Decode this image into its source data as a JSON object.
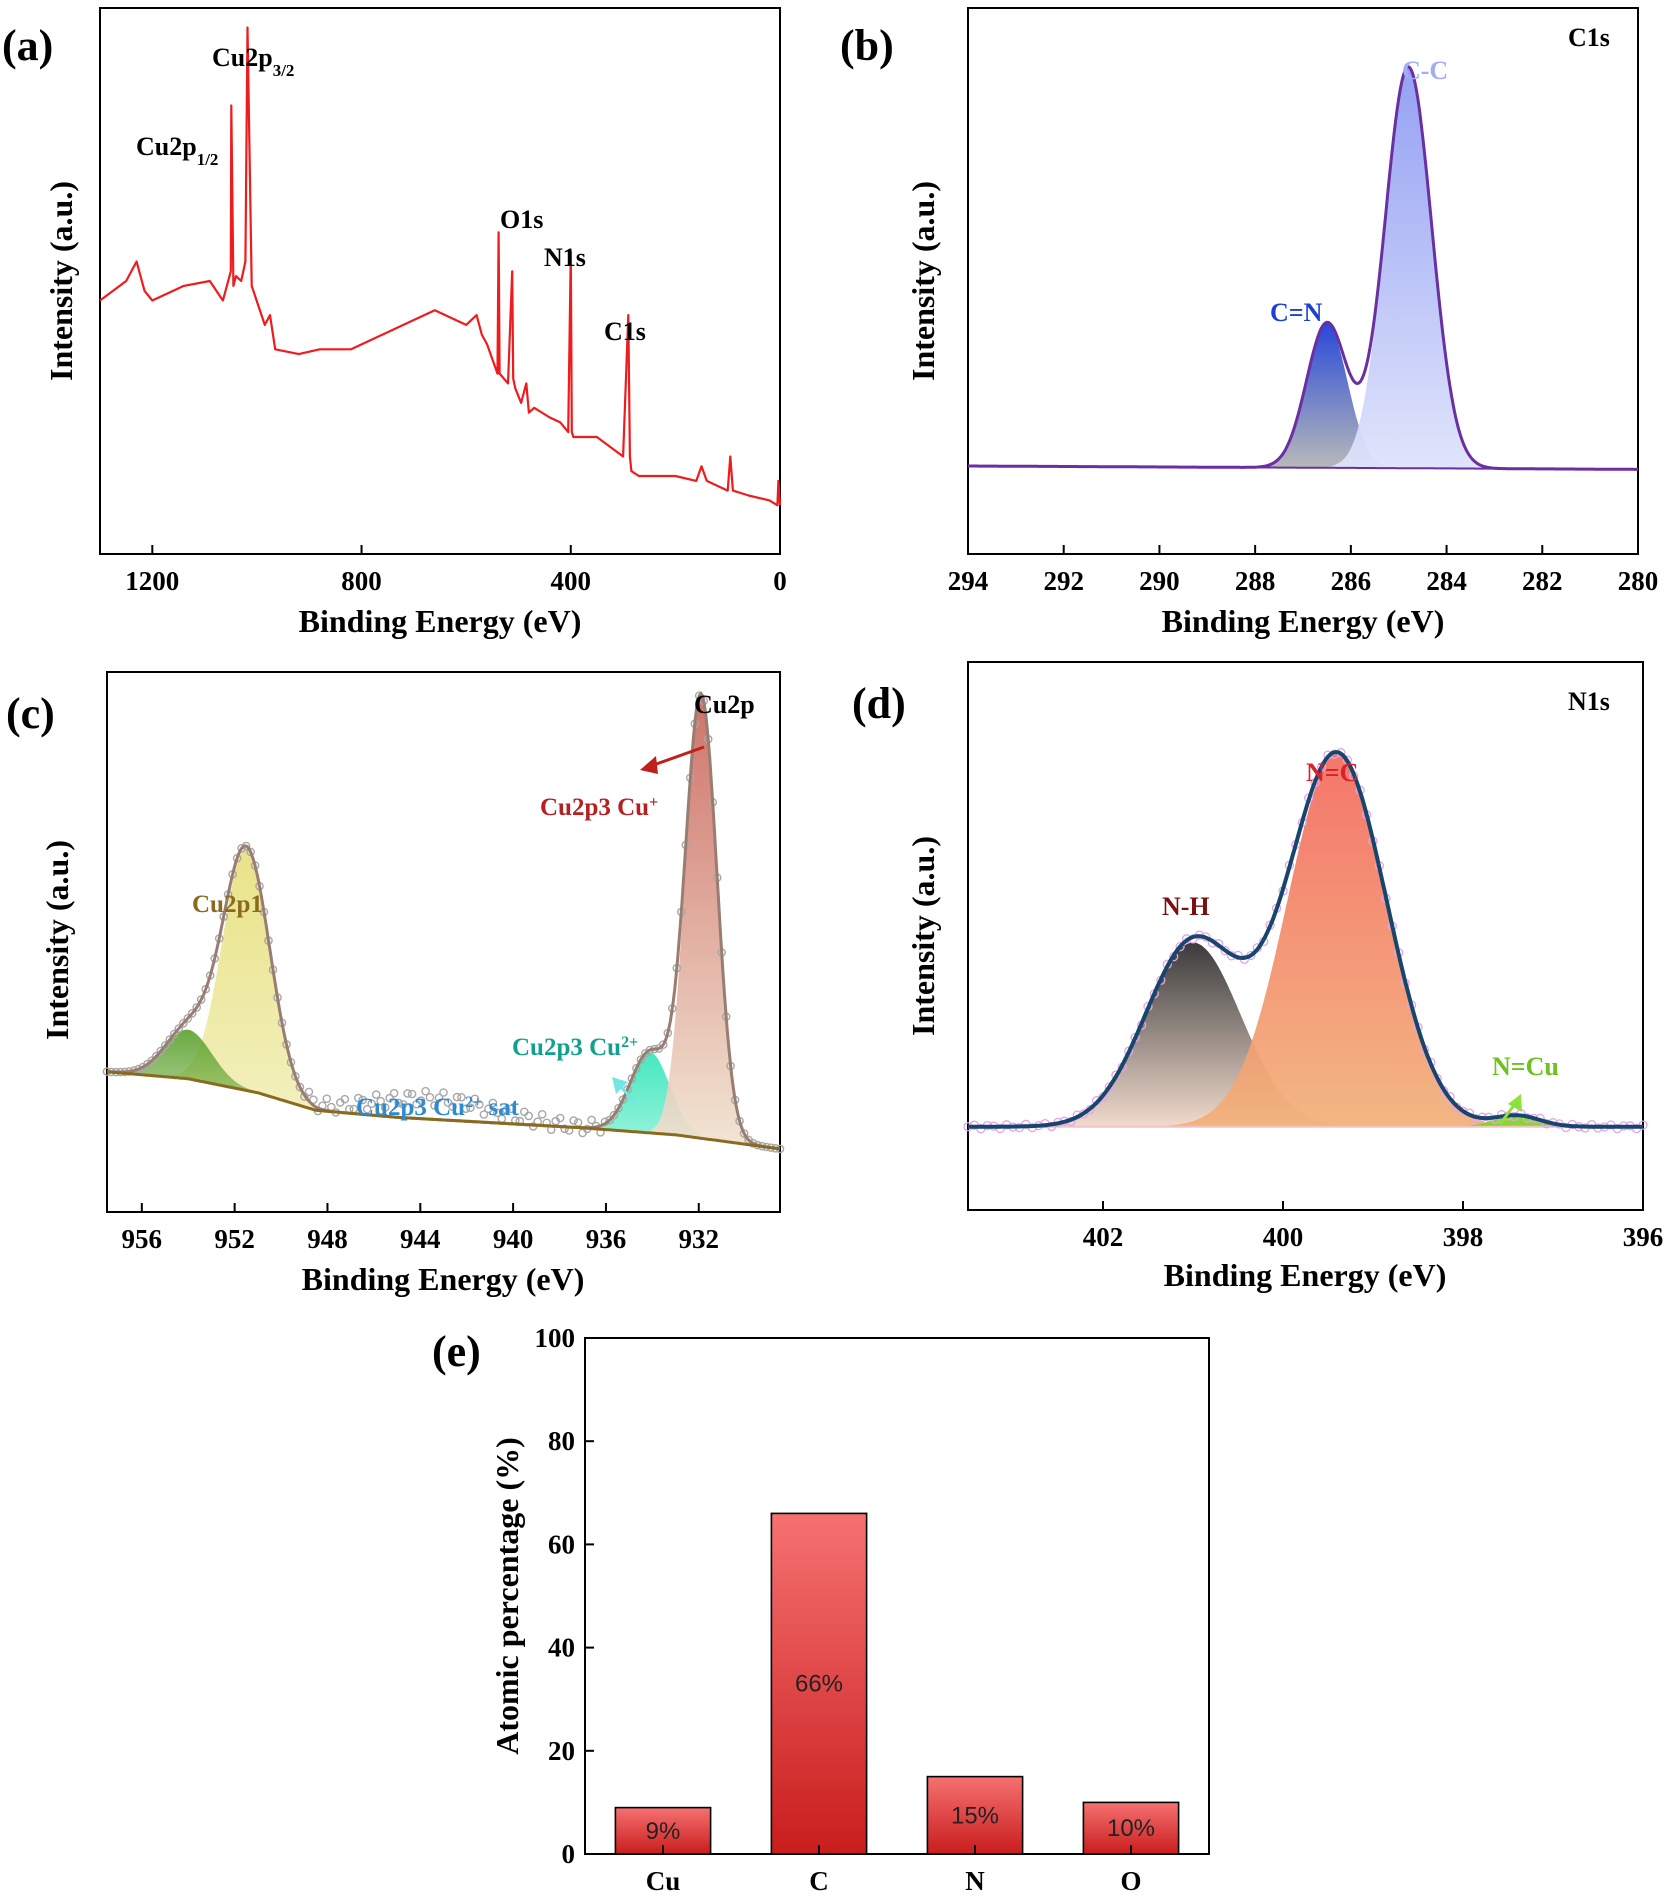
{
  "chart_data": [
    {
      "panel": "(a)",
      "type": "line",
      "title": "",
      "xlabel": "Binding Energy (eV)",
      "ylabel": "Intensity (a.u.)",
      "xlim": [
        1300,
        0
      ],
      "x_ticks": [
        "1200",
        "800",
        "400",
        "0"
      ],
      "x_tick_values": [
        1200,
        800,
        400,
        0
      ],
      "series_color": "#ee1c1c",
      "x": [
        1300,
        1250,
        1230,
        1215,
        1200,
        1140,
        1090,
        1065,
        1050,
        1049,
        1045,
        1040,
        1030,
        1022,
        1018,
        1010,
        985,
        975,
        965,
        920,
        880,
        820,
        760,
        700,
        660,
        620,
        600,
        580,
        570,
        560,
        540,
        538,
        536,
        520,
        512,
        510,
        506,
        495,
        485,
        480,
        470,
        440,
        420,
        405,
        400,
        398,
        395,
        380,
        350,
        300,
        290,
        287,
        284,
        270,
        200,
        160,
        150,
        140,
        120,
        100,
        95,
        90,
        60,
        20,
        5,
        3,
        0
      ],
      "y": [
        52,
        56,
        60,
        54,
        52,
        55,
        56,
        52,
        58,
        92,
        55,
        57,
        56,
        60,
        108,
        55,
        47,
        49,
        42,
        41,
        42,
        42,
        45,
        48,
        50,
        48,
        47,
        49,
        45,
        43,
        37,
        66,
        37,
        35,
        58,
        36,
        34,
        31,
        35,
        29,
        30,
        28,
        27,
        25,
        62,
        25,
        24,
        24,
        24,
        20,
        49,
        20,
        17,
        16,
        16,
        15,
        18,
        15,
        14,
        13,
        20,
        13,
        12,
        11,
        10,
        15,
        10
      ],
      "ylim": [
        0,
        112
      ],
      "annotations": [
        {
          "label": "Cu2p",
          "sub": "1/2",
          "x": 1045
        },
        {
          "label": "Cu2p",
          "sub": "3/2",
          "x": 1020
        },
        {
          "label": "O1s",
          "x": 532
        },
        {
          "label": "N1s",
          "x": 399
        },
        {
          "label": "C1s",
          "x": 285
        }
      ]
    },
    {
      "panel": "(b)",
      "type": "area",
      "title": "C1s",
      "xlabel": "Binding Energy (eV)",
      "ylabel": "Intensity (a.u.)",
      "xlim": [
        294,
        280
      ],
      "x_ticks": [
        "294",
        "292",
        "290",
        "288",
        "286",
        "284",
        "282",
        "280"
      ],
      "x_tick_values": [
        294,
        292,
        290,
        288,
        286,
        284,
        282,
        280
      ],
      "baseline": {
        "slope_per_eV": 0.06,
        "at": 287,
        "value": 3.5
      },
      "peaks": [
        {
          "label": "C=N",
          "center": 286.5,
          "height": 36,
          "fwhm": 1.0,
          "color": "#1d3fd6"
        },
        {
          "label": "C-C",
          "center": 284.8,
          "height": 100,
          "fwhm": 1.15,
          "color": "#8e9cf2"
        }
      ],
      "envelope_color": "#6a2fa0",
      "ylim": [
        -18,
        118
      ]
    },
    {
      "panel": "(c)",
      "type": "area",
      "title": "Cu2p",
      "xlabel": "Binding Energy (eV)",
      "ylabel": "Intensity (a.u.)",
      "xlim": [
        957.5,
        928.5
      ],
      "x_ticks": [
        "956",
        "952",
        "948",
        "944",
        "940",
        "936",
        "932"
      ],
      "x_tick_values": [
        956,
        952,
        948,
        944,
        940,
        936,
        932
      ],
      "baseline_points": [
        [
          957.5,
          28
        ],
        [
          954,
          26
        ],
        [
          951,
          22
        ],
        [
          948.5,
          17
        ],
        [
          945,
          15
        ],
        [
          937,
          12
        ],
        [
          933,
          10
        ],
        [
          928.5,
          6
        ]
      ],
      "peaks": [
        {
          "label": "Cu2p1",
          "center": 951.5,
          "height": 69,
          "fwhm": 2.4,
          "color": "#e6e07a"
        },
        {
          "label": "Cu2p1 sat",
          "center": 954.0,
          "height": 14,
          "fwhm": 2.4,
          "color": "#5aa02c"
        },
        {
          "label": "Cu2p3 Cu",
          "sup": "2+",
          "center": 934.1,
          "height": 23,
          "fwhm": 2.0,
          "color": "#2fe6b8"
        },
        {
          "label": "Cu2p3 Cu",
          "sup": "+",
          "center": 931.9,
          "height": 126,
          "fwhm": 1.6,
          "color": "#c9645a"
        }
      ],
      "envelope_color": "#9a7d72",
      "ylim": [
        -12,
        142
      ],
      "annotations": [
        {
          "label": "Cu2p1",
          "color": "#8a6a1e"
        },
        {
          "label": "Cu2p3 Cu",
          "sup": "+",
          "color": "#b52020"
        },
        {
          "label": "Cu2p3 Cu",
          "sup": "2+",
          "color": "#12a08f"
        },
        {
          "label": "Cu2p3 Cu",
          "sup": "2+",
          "suffix": " sat",
          "color": "#2f8bd0"
        }
      ]
    },
    {
      "panel": "(d)",
      "type": "area",
      "title": "N1s",
      "xlabel": "Binding Energy (eV)",
      "ylabel": "Intensity (a.u.)",
      "xlim": [
        403.5,
        396
      ],
      "x_ticks": [
        "402",
        "400",
        "398",
        "396"
      ],
      "x_tick_values": [
        402,
        400,
        398,
        396
      ],
      "peaks": [
        {
          "label": "N-H",
          "center": 401.0,
          "height": 42,
          "fwhm": 1.25,
          "color": "#2a2a2a"
        },
        {
          "label": "N=C",
          "center": 399.4,
          "height": 85,
          "fwhm": 1.3,
          "color": "#f46a5e"
        },
        {
          "label": "N=Cu",
          "center": 397.4,
          "height": 2.5,
          "fwhm": 0.6,
          "color": "#7ed321"
        }
      ],
      "envelope_color": "#16456e",
      "ylim": [
        -19,
        106
      ],
      "annotations": [
        {
          "label": "N-H",
          "color": "#7a1010"
        },
        {
          "label": "N=C",
          "color": "#d8222b"
        },
        {
          "label": "N=Cu",
          "color": "#6cc21f"
        }
      ]
    },
    {
      "panel": "(e)",
      "type": "bar",
      "title": "",
      "xlabel": "",
      "ylabel": "Atomic percentage (%)",
      "categories": [
        "Cu",
        "C",
        "N",
        "O"
      ],
      "values": [
        9,
        66,
        15,
        10
      ],
      "value_labels": [
        "9%",
        "66%",
        "15%",
        "10%"
      ],
      "ylim": [
        0,
        100
      ],
      "y_ticks": [
        "0",
        "20",
        "40",
        "60",
        "80",
        "100"
      ],
      "y_tick_values": [
        0,
        20,
        40,
        60,
        80,
        100
      ],
      "bar_color_top": "#f67171",
      "bar_color_bottom": "#c91d1d"
    }
  ]
}
